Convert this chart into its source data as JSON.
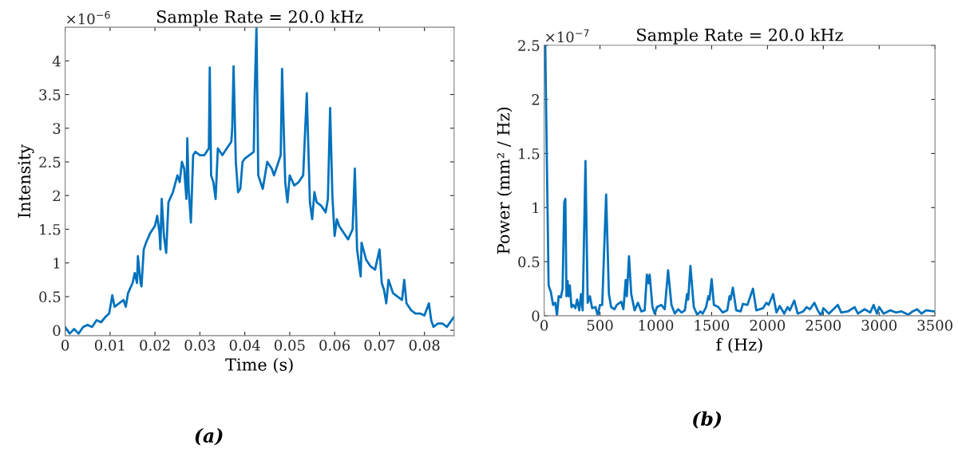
{
  "chart_data": [
    {
      "type": "line",
      "title": "Sample Rate = 20.0 kHz",
      "xlabel": "Time (s)",
      "ylabel": "Intensity",
      "annotations": [
        "×10$^{−6}$",
        "(a)"
      ],
      "xlim": [
        0,
        0.0866
      ],
      "ylim": [
        -0.08,
        4.5
      ],
      "xticks": [
        0,
        0.01,
        0.02,
        0.03,
        0.04,
        0.05,
        0.06,
        0.07,
        0.08
      ],
      "yticks": [
        0,
        0.5,
        1,
        1.5,
        2,
        2.5,
        3,
        3.5,
        4
      ],
      "grid": false,
      "marker": "none",
      "line_style": "solid",
      "series": [
        {
          "color": "#0072bd",
          "x": [
            0,
            0.001,
            0.002,
            0.003,
            0.004,
            0.005,
            0.006,
            0.007,
            0.008,
            0.009,
            0.0098,
            0.0105,
            0.011,
            0.012,
            0.013,
            0.0135,
            0.014,
            0.015,
            0.0155,
            0.016,
            0.0162,
            0.0165,
            0.0168,
            0.017,
            0.0175,
            0.018,
            0.019,
            0.02,
            0.0205,
            0.021,
            0.0212,
            0.0215,
            0.022,
            0.0225,
            0.023,
            0.024,
            0.025,
            0.0255,
            0.026,
            0.0265,
            0.027,
            0.0272,
            0.0275,
            0.028,
            0.0285,
            0.029,
            0.03,
            0.031,
            0.032,
            0.0322,
            0.0325,
            0.033,
            0.0335,
            0.034,
            0.035,
            0.036,
            0.037,
            0.0372,
            0.0375,
            0.038,
            0.0385,
            0.039,
            0.0395,
            0.04,
            0.041,
            0.042,
            0.0422,
            0.0426,
            0.043,
            0.0435,
            0.044,
            0.045,
            0.046,
            0.0465,
            0.047,
            0.048,
            0.0483,
            0.049,
            0.0495,
            0.05,
            0.051,
            0.052,
            0.053,
            0.0538,
            0.0545,
            0.055,
            0.0555,
            0.056,
            0.057,
            0.058,
            0.0585,
            0.059,
            0.0595,
            0.06,
            0.0605,
            0.061,
            0.062,
            0.063,
            0.064,
            0.0645,
            0.065,
            0.0658,
            0.066,
            0.067,
            0.068,
            0.069,
            0.07,
            0.0705,
            0.071,
            0.0715,
            0.072,
            0.073,
            0.074,
            0.075,
            0.0755,
            0.076,
            0.077,
            0.078,
            0.079,
            0.08,
            0.081,
            0.0815,
            0.082,
            0.083,
            0.084,
            0.085,
            0.0866
          ],
          "values": [
            0.05,
            -0.05,
            0.02,
            -0.05,
            0.05,
            0.08,
            0.05,
            0.15,
            0.12,
            0.2,
            0.25,
            0.52,
            0.35,
            0.4,
            0.45,
            0.35,
            0.55,
            0.7,
            0.85,
            0.7,
            1.1,
            0.9,
            0.7,
            0.65,
            1.2,
            1.3,
            1.45,
            1.55,
            1.7,
            1.45,
            1.2,
            1.95,
            1.4,
            1.15,
            1.9,
            2.05,
            2.3,
            2.2,
            2.5,
            2.4,
            1.95,
            2.85,
            2.1,
            1.6,
            2.6,
            2.65,
            2.6,
            2.6,
            2.7,
            3.9,
            2.3,
            2.2,
            1.95,
            2.7,
            2.6,
            2.7,
            2.8,
            3.0,
            3.92,
            2.5,
            2.05,
            2.1,
            2.5,
            2.55,
            2.6,
            2.65,
            3.5,
            4.5,
            2.3,
            2.2,
            2.1,
            2.5,
            2.4,
            2.3,
            2.4,
            2.6,
            3.88,
            2.2,
            1.9,
            2.3,
            2.15,
            2.2,
            2.3,
            3.52,
            1.9,
            1.65,
            2.05,
            1.9,
            1.85,
            1.75,
            1.95,
            3.3,
            2.0,
            1.4,
            1.65,
            1.55,
            1.45,
            1.35,
            1.5,
            2.4,
            1.2,
            0.8,
            1.3,
            1.05,
            0.95,
            0.9,
            1.2,
            0.7,
            0.6,
            0.4,
            0.75,
            0.55,
            0.5,
            0.45,
            0.75,
            0.4,
            0.3,
            0.25,
            0.25,
            0.22,
            0.4,
            0.15,
            0.05,
            0.1,
            0.1,
            0.05,
            0.2
          ]
        }
      ]
    },
    {
      "type": "line",
      "title": "Sample Rate = 20.0 kHz",
      "xlabel": "f (Hz)",
      "ylabel": "Power (mm² / Hz)",
      "annotations": [
        "×10$^{−7}$",
        "(b)"
      ],
      "xlim": [
        0,
        3500
      ],
      "ylim": [
        0,
        2.5
      ],
      "xticks": [
        0,
        500,
        1000,
        1500,
        2000,
        2500,
        3000,
        3500
      ],
      "yticks": [
        0,
        0.5,
        1,
        1.5,
        2,
        2.5
      ],
      "grid": false,
      "marker": "none",
      "line_style": "solid",
      "series": [
        {
          "color": "#0072bd",
          "x": [
            10,
            40,
            60,
            80,
            100,
            115,
            130,
            150,
            165,
            180,
            190,
            200,
            210,
            220,
            230,
            245,
            260,
            280,
            295,
            315,
            330,
            345,
            370,
            390,
            410,
            430,
            460,
            480,
            500,
            520,
            555,
            580,
            600,
            630,
            650,
            690,
            710,
            730,
            740,
            760,
            780,
            810,
            840,
            870,
            900,
            920,
            935,
            945,
            970,
            990,
            1010,
            1050,
            1080,
            1110,
            1140,
            1170,
            1200,
            1230,
            1260,
            1280,
            1290,
            1310,
            1340,
            1370,
            1400,
            1420,
            1450,
            1470,
            1480,
            1500,
            1520,
            1560,
            1600,
            1640,
            1660,
            1670,
            1690,
            1720,
            1760,
            1780,
            1820,
            1870,
            1900,
            1960,
            1990,
            2010,
            2050,
            2080,
            2110,
            2150,
            2180,
            2200,
            2240,
            2270,
            2320,
            2350,
            2380,
            2420,
            2450,
            2480,
            2500,
            2550,
            2600,
            2630,
            2660,
            2720,
            2780,
            2810,
            2870,
            2920,
            2950,
            2980,
            3000,
            3040,
            3100,
            3150,
            3200,
            3260,
            3300,
            3340,
            3380,
            3420,
            3500
          ],
          "values": [
            2.5,
            0.28,
            0.22,
            0.1,
            0.12,
            0,
            0.18,
            0.17,
            0.25,
            1.05,
            1.08,
            0.18,
            0.32,
            0.18,
            0.28,
            0.08,
            0.1,
            0.07,
            0.15,
            0.05,
            0.2,
            0.05,
            1.43,
            0.12,
            0.18,
            0.07,
            0.08,
            0,
            0.1,
            0.1,
            1.12,
            0.2,
            0.08,
            0.06,
            0.1,
            0.13,
            0.06,
            0.33,
            0.18,
            0.55,
            0.2,
            0.05,
            0.12,
            0.04,
            0.05,
            0.38,
            0.3,
            0.38,
            0.08,
            0.02,
            0.08,
            0.1,
            0.06,
            0.42,
            0.1,
            0.02,
            0.06,
            0.03,
            0.05,
            0.2,
            0.15,
            0.46,
            0.08,
            0.01,
            0.04,
            0.02,
            0.08,
            0.18,
            0.15,
            0.34,
            0.1,
            0.08,
            0.03,
            0.05,
            0.18,
            0.15,
            0.26,
            0.05,
            0.04,
            0.11,
            0.1,
            0.25,
            0.05,
            0.07,
            0.12,
            0.1,
            0.2,
            0.03,
            0.09,
            0.02,
            0.08,
            0.05,
            0.14,
            0.02,
            0.04,
            0.08,
            0.06,
            0.12,
            0.05,
            0,
            0.07,
            0.02,
            0.07,
            0.1,
            0.03,
            0.04,
            0.08,
            0.02,
            0.06,
            0.03,
            0.1,
            0.02,
            0.08,
            0.02,
            0.05,
            0.03,
            0.04,
            0.01,
            0.04,
            0.06,
            0.02,
            0.05,
            0.04
          ]
        }
      ]
    }
  ]
}
